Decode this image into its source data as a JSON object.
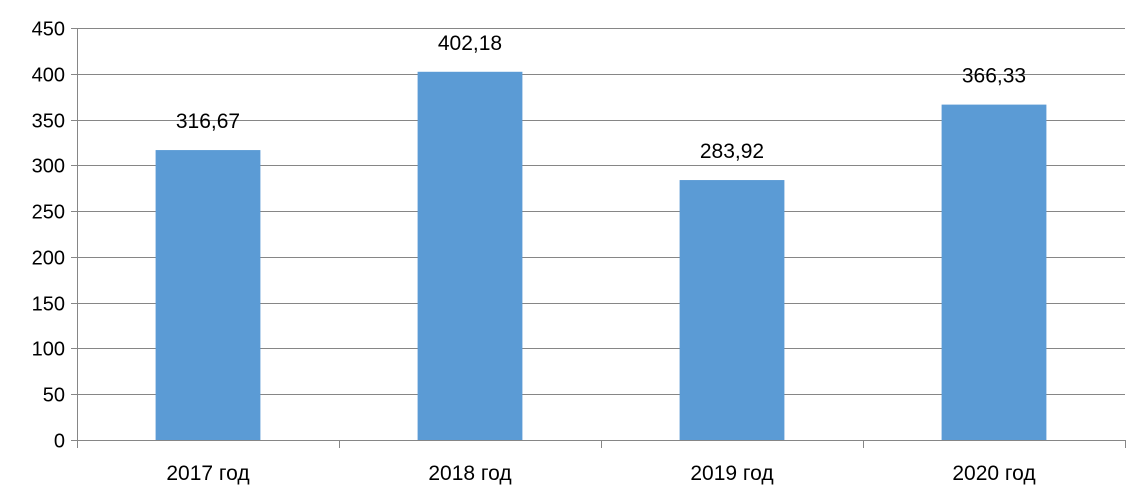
{
  "chart_data": {
    "type": "bar",
    "categories": [
      "2017 год",
      "2018 год",
      "2019 год",
      "2020 год"
    ],
    "values": [
      316.67,
      402.18,
      283.92,
      366.33
    ],
    "data_labels": [
      "316,67",
      "402,18",
      "283,92",
      "366,33"
    ],
    "ylim": [
      0,
      450
    ],
    "yticks": [
      0,
      50,
      100,
      150,
      200,
      250,
      300,
      350,
      400,
      450
    ],
    "ytick_labels": [
      "0",
      "50",
      "100",
      "150",
      "200",
      "250",
      "300",
      "350",
      "400",
      "450"
    ],
    "title": "",
    "xlabel": "",
    "ylabel": "",
    "grid": true,
    "legend": "none",
    "bar_color": "#5B9BD5",
    "grid_color": "#868686"
  }
}
